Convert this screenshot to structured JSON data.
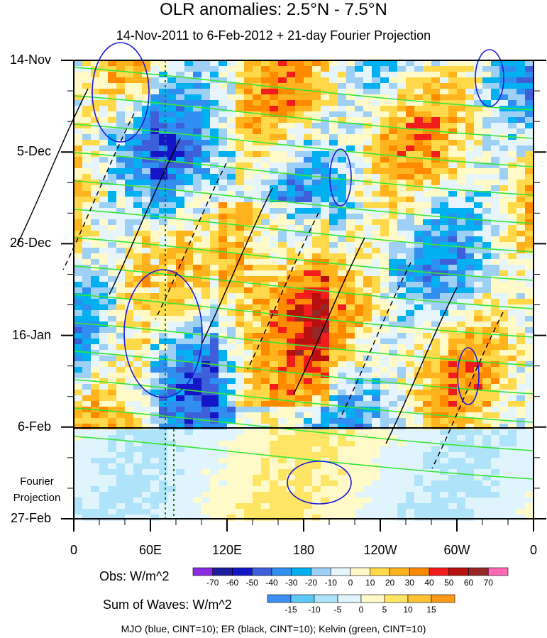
{
  "title": "OLR anomalies: 2.5°N - 7.5°N",
  "subtitle": "14-Nov-2011 to 6-Feb-2012 + 21-day Fourier Projection",
  "footer": "MJO (blue, CINT=10); ER (black, CINT=10); Kelvin (green, CINT=10)",
  "colors": {
    "mjo": "#1a1adc",
    "er": "#000000",
    "kelvin": "#36e636",
    "marker_line": "#1a7a1a"
  },
  "chart_data": {
    "type": "heatmap",
    "title": "OLR anomalies: 2.5°N - 7.5°N",
    "subtitle": "14-Nov-2011 to 6-Feb-2012 + 21-day Fourier Projection",
    "x_axis": {
      "ticks": [
        "0",
        "60E",
        "120E",
        "180",
        "120W",
        "60W",
        "0"
      ],
      "range_deg_east": [
        0,
        360
      ]
    },
    "y_axis": {
      "ticks": [
        "14-Nov",
        "5-Dec",
        "26-Dec",
        "16-Jan",
        "6-Feb",
        "27-Feb"
      ],
      "range": [
        "14-Nov-2011",
        "27-Feb-2012"
      ],
      "projection_label": "Fourier Projection",
      "observation_end": "6-Feb"
    },
    "obs_colorbar": {
      "label": "Obs: W/m^2",
      "ticks": [
        -70,
        -60,
        -50,
        -40,
        -30,
        -20,
        -10,
        0,
        10,
        20,
        30,
        40,
        50,
        60,
        70
      ],
      "colors": [
        "#8a2be2",
        "#1c1c9c",
        "#1515c8",
        "#3d5fd9",
        "#2f8ef0",
        "#00b0f0",
        "#9ed0f5",
        "#e6f5fc",
        "#fffac8",
        "#ffd94a",
        "#ffb31c",
        "#ff8a00",
        "#f21c1c",
        "#b80f0f",
        "#962828",
        "#ff69b4"
      ]
    },
    "waves_colorbar": {
      "label": "Sum of Waves: W/m^2",
      "ticks": [
        -15,
        -10,
        -5,
        0,
        5,
        10,
        15
      ],
      "colors": [
        "#3d8ff5",
        "#5cc8f5",
        "#aee3fa",
        "#e0f4fd",
        "#fffac8",
        "#ffe566",
        "#ffc233",
        "#ff9a1a"
      ]
    },
    "contours": [
      {
        "name": "MJO",
        "color": "blue",
        "cint": 10
      },
      {
        "name": "ER",
        "color": "black",
        "cint": 10
      },
      {
        "name": "Kelvin",
        "color": "green",
        "cint": 10
      }
    ]
  }
}
